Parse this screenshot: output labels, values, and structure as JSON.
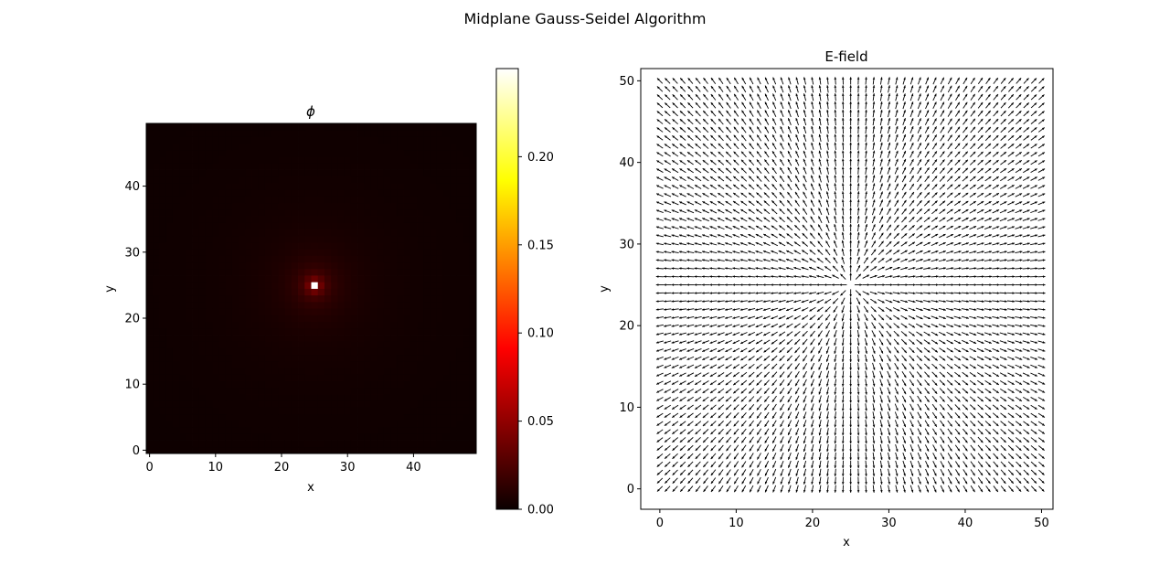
{
  "figure": {
    "suptitle": "Midplane Gauss-Seidel Algorithm"
  },
  "chart_data": [
    {
      "type": "heatmap",
      "title": "ϕ",
      "xlabel": "x",
      "ylabel": "y",
      "grid_size": 50,
      "origin": "lower",
      "xlim": [
        -0.5,
        49.5
      ],
      "ylim": [
        -0.5,
        49.5
      ],
      "xticks": [
        0,
        10,
        20,
        30,
        40
      ],
      "yticks": [
        0,
        10,
        20,
        30,
        40
      ],
      "peak": {
        "x": 25,
        "y": 25,
        "value": 0.25
      },
      "colormap": "hot",
      "colorbar": {
        "range": [
          0,
          0.25
        ],
        "ticks": [
          "0.00",
          "0.05",
          "0.10",
          "0.15",
          "0.20"
        ],
        "colors": [
          "#0b0000",
          "#ff0000",
          "#ffff00",
          "#ffffff"
        ]
      },
      "grid": false
    },
    {
      "type": "quiver",
      "title": "E-field",
      "xlabel": "x",
      "ylabel": "y",
      "grid_size": 51,
      "xlim": [
        -2.5,
        51.5
      ],
      "ylim": [
        -2.5,
        51.5
      ],
      "xticks": [
        0,
        10,
        20,
        30,
        40,
        50
      ],
      "yticks": [
        0,
        10,
        20,
        30,
        40,
        50
      ],
      "source": {
        "x": 25,
        "y": 25
      },
      "direction": "radially outward from source",
      "arrow_color": "#000000",
      "grid": false
    }
  ]
}
